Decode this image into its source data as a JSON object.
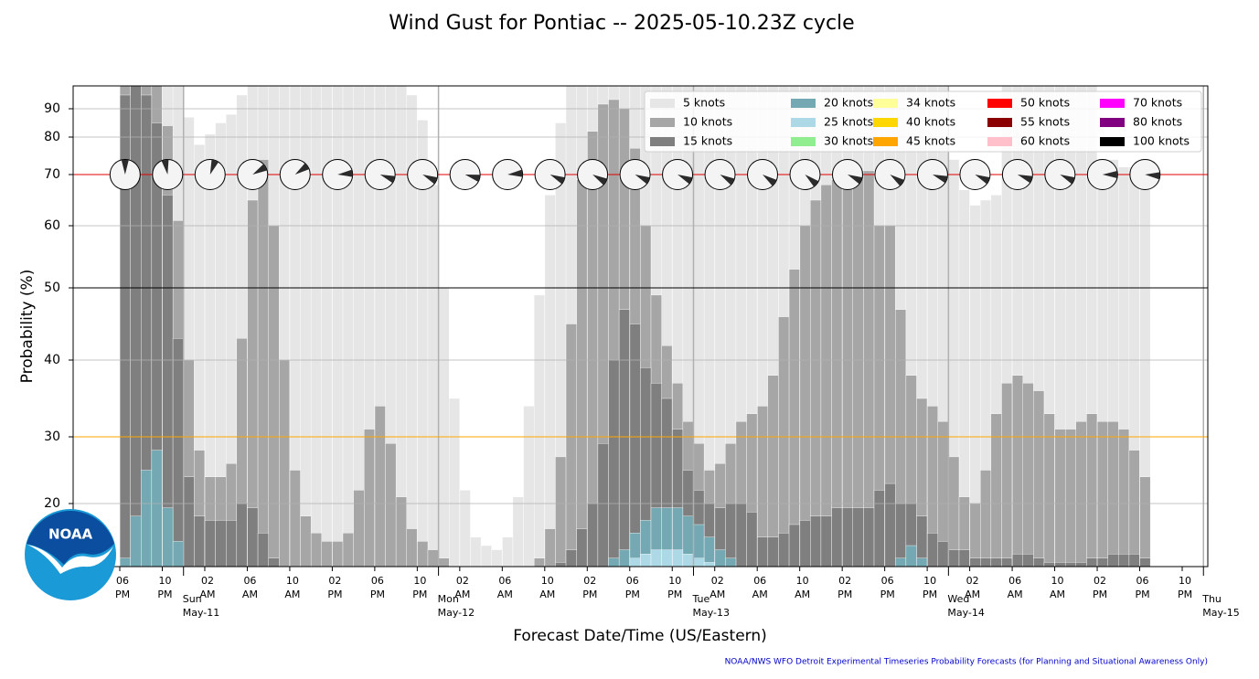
{
  "chart_data": {
    "type": "bar",
    "title": "Wind Gust for Pontiac -- 2025-05-10.23Z cycle",
    "ylabel": "Probability (%)",
    "xlabel": "Forecast Date/Time (US/Eastern)",
    "footer": "NOAA/NWS WFO Detroit Experimental Timeseries Probability Forecasts (for Planning and Situational Awareness Only)",
    "logo_text": "NOAA",
    "ylim": [
      5,
      95
    ],
    "yticks": [
      20,
      30,
      40,
      50,
      60,
      70,
      80,
      90
    ],
    "grid": true,
    "legend_position": "upper right",
    "reference_lines": [
      {
        "value": 70,
        "color": "#e00000"
      },
      {
        "value": 50,
        "color": "#000000"
      },
      {
        "value": 30,
        "color": "#ffa500"
      }
    ],
    "categories": [
      "06\nPM",
      null,
      null,
      null,
      "10\nPM",
      null,
      null,
      null,
      "02\nAM",
      null,
      null,
      null,
      "06\nAM",
      null,
      null,
      null,
      "10\nAM",
      null,
      null,
      null,
      "02\nPM",
      null,
      null,
      null,
      "06\nPM",
      null,
      null,
      null,
      "10\nPM",
      null,
      null,
      null,
      "02\nAM",
      null,
      null,
      null,
      "06\nAM",
      null,
      null,
      null,
      "10\nAM",
      null,
      null,
      null,
      "02\nPM",
      null,
      null,
      null,
      "06\nPM",
      null,
      null,
      null,
      "10\nPM",
      null,
      null,
      null,
      "02\nAM",
      null,
      null,
      null,
      "06\nAM",
      null,
      null,
      null,
      "10\nAM",
      null,
      null,
      null,
      "02\nPM",
      null,
      null,
      null,
      "06\nPM",
      null,
      null,
      null,
      "10\nPM",
      null,
      null,
      null,
      "02\nAM",
      null,
      null,
      null,
      "06\nAM",
      null,
      null,
      null,
      "10\nAM",
      null,
      null,
      null,
      "02\nPM",
      null,
      null,
      null,
      "06\nPM",
      null,
      null,
      null,
      "10\nPM",
      null,
      null
    ],
    "day_categories": [
      null,
      null,
      null,
      null,
      null,
      null,
      "Sun\nMay-11",
      null,
      null,
      null,
      null,
      null,
      null,
      null,
      null,
      null,
      null,
      null,
      null,
      null,
      null,
      null,
      null,
      null,
      null,
      null,
      null,
      null,
      null,
      null,
      "Mon\nMay-12",
      null,
      null,
      null,
      null,
      null,
      null,
      null,
      null,
      null,
      null,
      null,
      null,
      null,
      null,
      null,
      null,
      null,
      null,
      null,
      null,
      null,
      null,
      null,
      "Tue\nMay-13",
      null,
      null,
      null,
      null,
      null,
      null,
      null,
      null,
      null,
      null,
      null,
      null,
      null,
      null,
      null,
      null,
      null,
      null,
      null,
      null,
      null,
      null,
      null,
      "Wed\nMay-14",
      null,
      null,
      null,
      null,
      null,
      null,
      null,
      null,
      null,
      null,
      null,
      null,
      null,
      null,
      null,
      null,
      null,
      null,
      null,
      null,
      null,
      null,
      null,
      "Thu\nMay-15"
    ],
    "wind_direction_deg": [
      0,
      null,
      null,
      null,
      350,
      null,
      null,
      null,
      20,
      null,
      null,
      null,
      60,
      null,
      null,
      null,
      55,
      null,
      null,
      null,
      85,
      null,
      null,
      null,
      110,
      null,
      null,
      null,
      115,
      null,
      null,
      null,
      105,
      null,
      null,
      null,
      85,
      null,
      null,
      null,
      115,
      null,
      null,
      null,
      120,
      null,
      null,
      null,
      115,
      null,
      null,
      null,
      115,
      null,
      null,
      null,
      120,
      null,
      null,
      null,
      125,
      null,
      null,
      null,
      130,
      null,
      null,
      null,
      115,
      null,
      null,
      null,
      125,
      null,
      null,
      null,
      110,
      null,
      null,
      null,
      115,
      null,
      null,
      null,
      110,
      null,
      null,
      null,
      115,
      null,
      null,
      null,
      90,
      null,
      null,
      null,
      95,
      null,
      null,
      null,
      null,
      null,
      null
    ],
    "series": [
      {
        "name": "5 knots",
        "color": "#e6e6e6",
        "values": [
          99,
          99,
          99,
          99,
          99,
          99,
          87,
          78,
          81,
          85,
          88,
          93,
          97,
          97,
          97,
          97,
          97,
          97,
          97,
          97,
          97,
          97,
          97,
          97,
          97,
          97,
          97,
          93,
          86,
          68,
          50,
          35,
          22,
          12,
          10,
          9,
          12,
          21,
          34,
          49,
          66,
          85,
          97,
          97,
          97,
          97,
          97,
          97,
          97,
          97,
          97,
          97,
          97,
          97,
          97,
          97,
          97,
          97,
          97,
          97,
          97,
          97,
          97,
          97,
          97,
          97,
          97,
          97,
          97,
          97,
          97,
          97,
          97,
          97,
          97,
          97,
          97,
          97,
          74,
          67,
          64,
          65,
          66,
          97,
          97,
          97,
          97,
          97,
          97,
          97,
          97,
          97,
          74,
          74,
          72,
          72,
          72,
          null,
          null,
          null,
          null,
          null,
          null
        ]
      },
      {
        "name": "10 knots",
        "color": "#a6a6a6",
        "values": [
          97,
          99,
          99,
          99,
          84,
          61,
          40,
          28,
          24,
          24,
          26,
          43,
          65,
          74,
          60,
          40,
          25,
          17,
          13,
          11,
          11,
          13,
          22,
          31,
          34,
          29,
          21,
          14,
          11,
          9,
          7,
          0,
          0,
          0,
          0,
          0,
          0,
          0,
          0,
          7,
          14,
          27,
          45,
          69,
          82,
          91,
          92,
          90,
          77,
          60,
          49,
          42,
          37,
          32,
          29,
          25,
          26,
          29,
          32,
          33,
          34,
          38,
          46,
          53,
          60,
          65,
          68,
          69,
          71,
          71,
          71,
          60,
          60,
          47,
          38,
          35,
          34,
          32,
          27,
          21,
          20,
          25,
          33,
          37,
          38,
          37,
          36,
          33,
          31,
          31,
          32,
          33,
          32,
          32,
          31,
          28,
          24,
          null,
          null,
          null,
          null,
          null,
          null
        ]
      },
      {
        "name": "15 knots",
        "color": "#7f7f7f",
        "values": [
          93,
          97,
          93,
          85,
          66,
          43,
          24,
          17,
          16,
          16,
          16,
          20,
          19,
          13,
          7,
          0,
          0,
          0,
          0,
          0,
          0,
          0,
          0,
          0,
          0,
          0,
          0,
          0,
          0,
          0,
          0,
          0,
          0,
          0,
          0,
          0,
          0,
          0,
          0,
          0,
          0,
          6,
          9,
          14,
          20,
          29,
          40,
          47,
          45,
          39,
          37,
          35,
          31,
          25,
          22,
          20,
          19,
          20,
          20,
          18,
          12,
          12,
          13,
          15,
          16,
          17,
          17,
          19,
          19,
          19,
          19,
          22,
          23,
          20,
          20,
          17,
          13,
          11,
          9,
          9,
          7,
          7,
          7,
          7,
          8,
          8,
          7,
          6,
          6,
          6,
          6,
          7,
          7,
          8,
          8,
          8,
          7,
          null,
          null,
          null,
          null,
          null,
          null
        ]
      },
      {
        "name": "20 knots",
        "color": "#74a9b3",
        "values": [
          7,
          17,
          25,
          28,
          19,
          11,
          0,
          0,
          0,
          0,
          0,
          0,
          0,
          0,
          0,
          0,
          0,
          0,
          0,
          0,
          0,
          0,
          0,
          0,
          0,
          0,
          0,
          0,
          0,
          0,
          0,
          0,
          0,
          0,
          0,
          0,
          0,
          0,
          0,
          0,
          0,
          0,
          0,
          0,
          0,
          0,
          7,
          9,
          13,
          16,
          19,
          19,
          19,
          17,
          15,
          12,
          9,
          7,
          0,
          0,
          0,
          0,
          0,
          0,
          0,
          0,
          0,
          0,
          0,
          0,
          0,
          0,
          0,
          7,
          10,
          7,
          0,
          0,
          0,
          0,
          0,
          0,
          0,
          0,
          0,
          0,
          0,
          0,
          0,
          0,
          0,
          0,
          0,
          0,
          0,
          0,
          0,
          null,
          null,
          null,
          null,
          null,
          null
        ]
      },
      {
        "name": "25 knots",
        "color": "#add8e6",
        "values": [
          0,
          0,
          0,
          0,
          0,
          0,
          0,
          0,
          0,
          0,
          0,
          0,
          0,
          0,
          0,
          0,
          0,
          0,
          0,
          0,
          0,
          0,
          0,
          0,
          0,
          0,
          0,
          0,
          0,
          0,
          0,
          0,
          0,
          0,
          0,
          0,
          0,
          0,
          0,
          0,
          0,
          0,
          0,
          0,
          0,
          0,
          0,
          0,
          7,
          8,
          9,
          9,
          9,
          8,
          7,
          6,
          0,
          0,
          0,
          0,
          0,
          0,
          0,
          0,
          0,
          0,
          0,
          0,
          0,
          0,
          0,
          0,
          0,
          0,
          0,
          0,
          0,
          0,
          0,
          0,
          0,
          0,
          0,
          0,
          0,
          0,
          0,
          0,
          0,
          0,
          0,
          0,
          0,
          0,
          0,
          0,
          0,
          null,
          null,
          null,
          null,
          null,
          null
        ]
      }
    ],
    "legend": [
      {
        "name": "30 knots",
        "color": "#90ee90"
      },
      {
        "name": "34 knots",
        "color": "#ffff99"
      },
      {
        "name": "40 knots",
        "color": "#ffd700"
      },
      {
        "name": "45 knots",
        "color": "#ffa500"
      },
      {
        "name": "50 knots",
        "color": "#ff0000"
      },
      {
        "name": "55 knots",
        "color": "#8b0000"
      },
      {
        "name": "60 knots",
        "color": "#ffc0cb"
      },
      {
        "name": "70 knots",
        "color": "#ff00ff"
      },
      {
        "name": "80 knots",
        "color": "#800080"
      },
      {
        "name": "100 knots",
        "color": "#000000"
      }
    ]
  }
}
